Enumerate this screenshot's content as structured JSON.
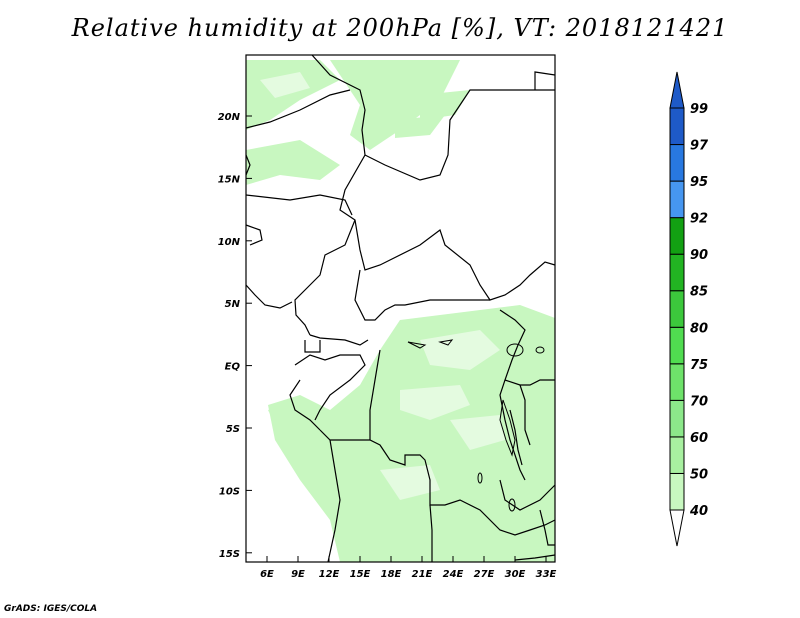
{
  "title": "Relative humidity at 200hPa [%], VT: 2018121421",
  "footer": "GrADS: IGES/COLA",
  "lat_ticks": [
    "20N",
    "15N",
    "10N",
    "5N",
    "EQ",
    "5S",
    "10S",
    "15S"
  ],
  "lon_ticks": [
    "6E",
    "9E",
    "12E",
    "15E",
    "18E",
    "21E",
    "24E",
    "27E",
    "30E",
    "33E"
  ],
  "colorbar": {
    "levels": [
      "40",
      "50",
      "60",
      "70",
      "75",
      "80",
      "85",
      "90",
      "92",
      "95",
      "97",
      "99"
    ],
    "colors": [
      "#f0fff0",
      "#c8f8c0",
      "#a8f0a0",
      "#8ce88a",
      "#6ee26a",
      "#50dc50",
      "#3cc83c",
      "#22b422",
      "#12a012",
      "#4696f0",
      "#2878e0",
      "#1e5ac8"
    ]
  },
  "map": {
    "lon_range": [
      4,
      34
    ],
    "lat_range": [
      -16,
      25
    ],
    "fill_color": "#c8f7c0"
  }
}
